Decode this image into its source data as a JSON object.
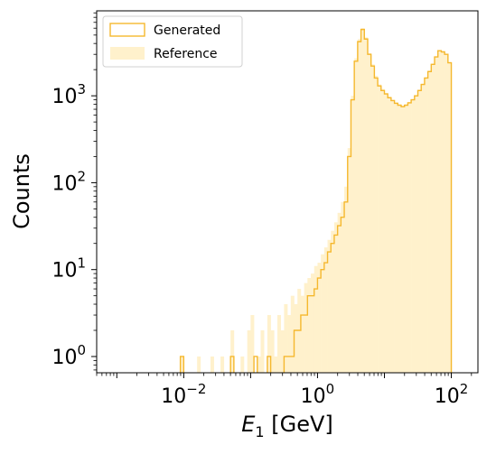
{
  "chart_data": {
    "type": "histogram",
    "xlabel_main": "E",
    "xlabel_sub": "1",
    "xlabel_unit": " [GeV]",
    "ylabel": "Counts",
    "xscale": "log",
    "yscale": "log",
    "xlim": [
      0.0005,
      250
    ],
    "ylim": [
      0.65,
      9500
    ],
    "grid": false,
    "legend": {
      "placement": "upper-left"
    },
    "x_ticks": [
      {
        "value": 0.01,
        "base": "10",
        "exp": "−2"
      },
      {
        "value": 1,
        "base": "10",
        "exp": "0"
      },
      {
        "value": 100,
        "base": "10",
        "exp": "2"
      }
    ],
    "y_ticks": [
      {
        "value": 1,
        "base": "10",
        "exp": "0"
      },
      {
        "value": 10,
        "base": "10",
        "exp": "1"
      },
      {
        "value": 100,
        "base": "10",
        "exp": "2"
      },
      {
        "value": 1000,
        "base": "10",
        "exp": "3"
      }
    ],
    "bin_range": [
      0.001,
      100
    ],
    "n_bins": 100,
    "colors": {
      "generated_edge": "#f5b82e",
      "reference_fill": "#fff1cc"
    },
    "series": [
      {
        "name": "Generated",
        "style": "step",
        "values": [
          0,
          0,
          0,
          0,
          0,
          0,
          0,
          0,
          0,
          0,
          0,
          0,
          0,
          0,
          0,
          0,
          0,
          0,
          0,
          1,
          0,
          0,
          0,
          0,
          0,
          0,
          0,
          0,
          0,
          0,
          0,
          0,
          0,
          0,
          1,
          0,
          0,
          0,
          0,
          0,
          0,
          1,
          0,
          0,
          0,
          1,
          0,
          0,
          0,
          0,
          1,
          1,
          1,
          2,
          2,
          3,
          3,
          5,
          5,
          6,
          8,
          10,
          12,
          16,
          20,
          25,
          32,
          40,
          60,
          200,
          900,
          2500,
          4200,
          5800,
          4500,
          3000,
          2200,
          1600,
          1300,
          1150,
          1050,
          950,
          880,
          820,
          780,
          750,
          780,
          830,
          900,
          1000,
          1150,
          1350,
          1600,
          1900,
          2300,
          2800,
          3300,
          3200,
          3000,
          2400
        ]
      },
      {
        "name": "Reference",
        "style": "filled",
        "values": [
          0,
          0,
          0,
          0,
          0,
          0,
          0,
          0,
          0,
          0,
          0,
          0,
          0,
          0,
          0,
          0,
          0,
          0,
          0,
          1,
          0,
          0,
          0,
          0,
          1,
          0,
          0,
          0,
          1,
          0,
          0,
          1,
          0,
          0,
          2,
          0,
          0,
          1,
          0,
          2,
          3,
          0,
          1,
          2,
          0,
          3,
          2,
          1,
          3,
          2,
          4,
          3,
          5,
          4,
          6,
          5,
          7,
          8,
          9,
          11,
          12,
          15,
          18,
          22,
          28,
          35,
          45,
          60,
          90,
          250,
          1000,
          2700,
          4500,
          6000,
          4700,
          3100,
          2300,
          1700,
          1350,
          1200,
          1080,
          980,
          900,
          840,
          800,
          770,
          800,
          850,
          920,
          1020,
          1180,
          1380,
          1630,
          1950,
          2350,
          2850,
          3350,
          3250,
          3050,
          2450
        ]
      }
    ]
  }
}
